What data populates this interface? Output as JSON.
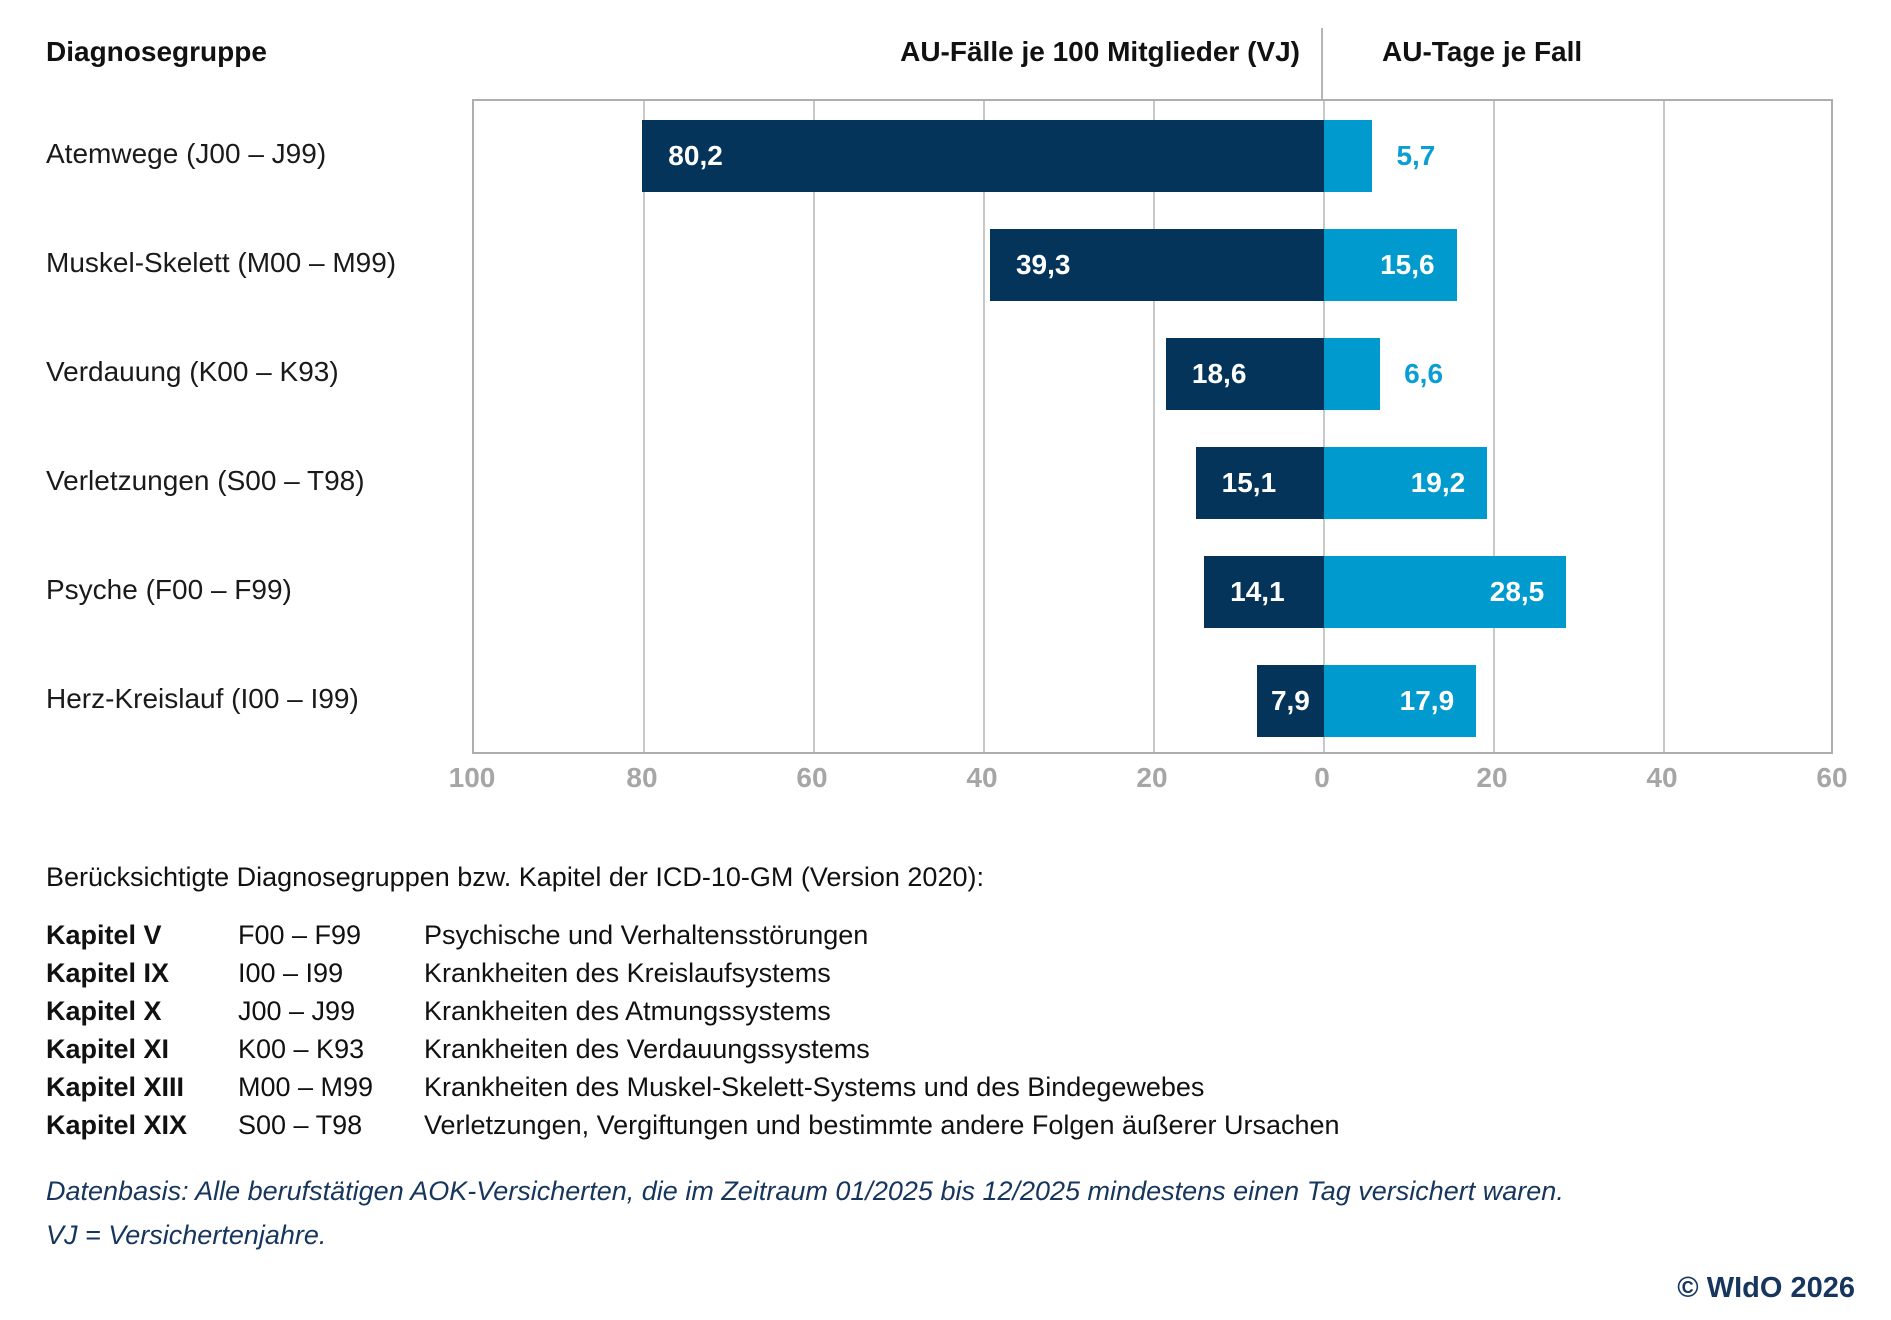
{
  "header": {
    "col1": "Diagnosegruppe",
    "col2": "AU-Fälle je 100 Mitglieder (VJ)",
    "col3": "AU-Tage je Fall"
  },
  "chart_data": {
    "type": "bar",
    "orientation": "horizontal-diverging",
    "title": "",
    "categories": [
      "Atemwege (J00 – J99)",
      "Muskel-Skelett (M00 – M99)",
      "Verdauung (K00 – K93)",
      "Verletzungen (S00 – T98)",
      "Psyche (F00 – F99)",
      "Herz-Kreislauf (I00 – I99)"
    ],
    "series": [
      {
        "name": "AU-Fälle je 100 Mitglieder (VJ)",
        "side": "left",
        "color": "#043459",
        "values": [
          80.2,
          39.3,
          18.6,
          15.1,
          14.1,
          7.9
        ],
        "labels": [
          "80,2",
          "39,3",
          "18,6",
          "15,1",
          "14,1",
          "7,9"
        ]
      },
      {
        "name": "AU-Tage je Fall",
        "side": "right",
        "color": "#009ace",
        "values": [
          5.7,
          15.6,
          6.6,
          19.2,
          28.5,
          17.9
        ],
        "labels": [
          "5,7",
          "15,6",
          "6,6",
          "19,2",
          "28,5",
          "17,9"
        ]
      }
    ],
    "axis_ticks": [
      "100",
      "80",
      "60",
      "40",
      "20",
      "0",
      "20",
      "40",
      "60"
    ],
    "left_axis_max": 100,
    "right_axis_max": 60,
    "units_per_tick": 20,
    "grid": true,
    "value_label_color_inside": "#ffffff",
    "value_label_color_outside": "#0a9ed6"
  },
  "footnote": {
    "intro": "Berücksichtigte Diagnosegruppen bzw. Kapitel der ICD-10-GM (Version 2020):",
    "kapitel": [
      {
        "name": "Kapitel V",
        "code": "F00 – F99",
        "desc": "Psychische und Verhaltensstörungen"
      },
      {
        "name": "Kapitel IX",
        "code": "I00 – I99",
        "desc": "Krankheiten des Kreislaufsystems"
      },
      {
        "name": "Kapitel X",
        "code": "J00 – J99",
        "desc": "Krankheiten des Atmungssystems"
      },
      {
        "name": "Kapitel XI",
        "code": "K00 – K93",
        "desc": "Krankheiten des Verdauungssystems"
      },
      {
        "name": "Kapitel XIII",
        "code": "M00 – M99",
        "desc": "Krankheiten des Muskel-Skelett-Systems und des Bindegewebes"
      },
      {
        "name": "Kapitel XIX",
        "code": "S00 – T98",
        "desc": "Verletzungen, Vergiftungen und bestimmte andere Folgen äußerer Ursachen"
      }
    ],
    "datenbasis": "Datenbasis: Alle berufstätigen AOK-Versicherten, die im Zeitraum 01/2025 bis 12/2025 mindestens einen Tag versichert waren.",
    "vj": "VJ = Versichertenjahre.",
    "copyright": "© WIdO 2026"
  }
}
